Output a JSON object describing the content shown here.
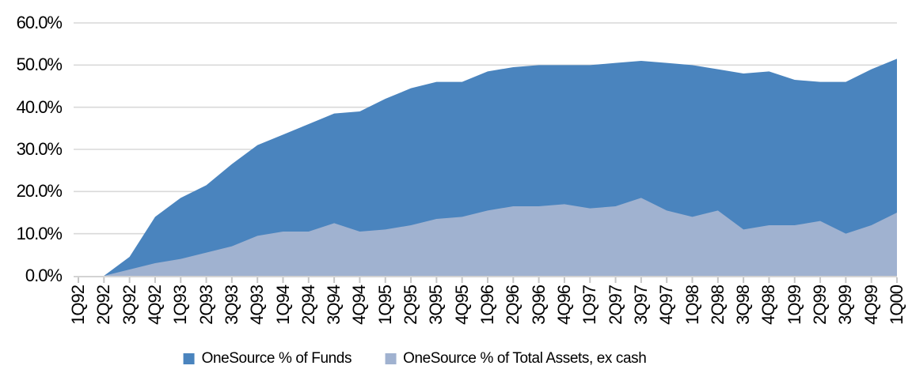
{
  "chart_data": {
    "type": "area",
    "stacked": false,
    "title": "",
    "xlabel": "",
    "ylabel": "",
    "ylim": [
      0,
      60
    ],
    "ytick_step": 10,
    "ytick_labels": [
      "0.0%",
      "10.0%",
      "20.0%",
      "30.0%",
      "40.0%",
      "50.0%",
      "60.0%"
    ],
    "grid": true,
    "legend_position": "bottom",
    "categories": [
      "1Q92",
      "2Q92",
      "3Q92",
      "4Q92",
      "1Q93",
      "2Q93",
      "3Q93",
      "4Q93",
      "1Q94",
      "2Q94",
      "3Q94",
      "4Q94",
      "1Q95",
      "2Q95",
      "3Q95",
      "4Q95",
      "1Q96",
      "2Q96",
      "3Q96",
      "4Q96",
      "1Q97",
      "2Q97",
      "3Q97",
      "4Q97",
      "1Q98",
      "2Q98",
      "3Q98",
      "4Q98",
      "1Q99",
      "2Q99",
      "3Q99",
      "4Q99",
      "1Q00"
    ],
    "series": [
      {
        "name": "OneSource % of Funds",
        "color": "#4A84BE",
        "values": [
          0,
          0,
          4.5,
          14,
          18.5,
          21.5,
          26.5,
          31,
          33.5,
          36,
          38.5,
          39,
          42,
          44.5,
          46,
          46,
          48.5,
          49.5,
          50,
          50,
          50,
          50.5,
          51,
          50.5,
          50,
          49,
          48,
          48.5,
          46.5,
          46,
          46,
          49,
          51.5
        ]
      },
      {
        "name": "OneSource % of Total Assets, ex cash",
        "color": "#A0B2D0",
        "values": [
          0,
          0,
          1.5,
          3,
          4,
          5.5,
          7,
          9.5,
          10.5,
          10.5,
          12.5,
          10.5,
          11,
          12,
          13.5,
          14,
          15.5,
          16.5,
          16.5,
          17,
          16,
          16.5,
          18.5,
          15.5,
          14,
          15.5,
          11,
          12,
          12,
          13,
          10,
          12,
          15
        ]
      }
    ],
    "axis_colors": {
      "gridline": "#D9D9D9",
      "tick": "#C6C6C6",
      "baseline": "#D3D3D3"
    }
  },
  "legend": {
    "items": [
      {
        "label": "OneSource % of Funds",
        "color": "#4A84BE"
      },
      {
        "label": "OneSource % of Total Assets, ex cash",
        "color": "#A0B2D0"
      }
    ]
  }
}
